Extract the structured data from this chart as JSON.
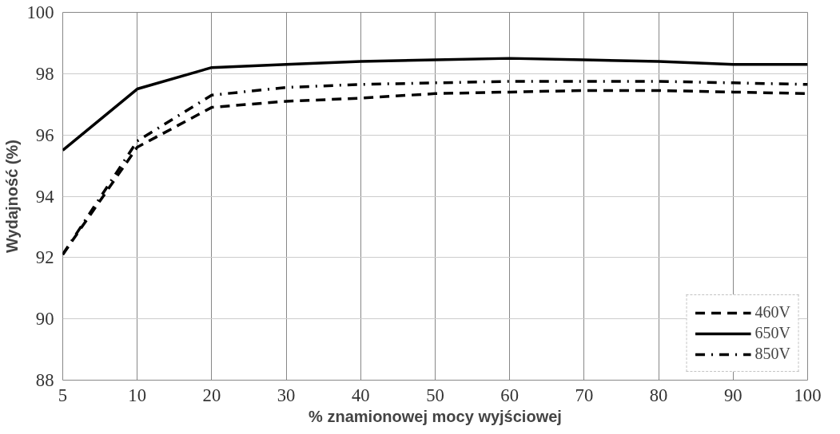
{
  "chart_data": {
    "type": "line",
    "xlabel": "% znamionowej mocy wyjściowej",
    "ylabel": "Wydajność (%)",
    "categories": [
      "5",
      "10",
      "20",
      "30",
      "40",
      "50",
      "60",
      "70",
      "80",
      "90",
      "100"
    ],
    "series": [
      {
        "name": "460V",
        "color": "#000000",
        "line_style": "dashed",
        "values": [
          92.1,
          95.6,
          96.9,
          97.1,
          97.2,
          97.35,
          97.4,
          97.45,
          97.45,
          97.4,
          97.35
        ]
      },
      {
        "name": "650V",
        "color": "#000000",
        "line_style": "solid",
        "values": [
          95.5,
          97.5,
          98.2,
          98.3,
          98.4,
          98.45,
          98.5,
          98.45,
          98.4,
          98.3,
          98.3
        ]
      },
      {
        "name": "850V",
        "color": "#000000",
        "line_style": "dashdot",
        "values": [
          92.1,
          95.8,
          97.3,
          97.55,
          97.65,
          97.7,
          97.75,
          97.75,
          97.75,
          97.7,
          97.65
        ]
      }
    ],
    "ylim": [
      88,
      100
    ],
    "yticks": [
      88,
      90,
      92,
      94,
      96,
      98,
      100
    ],
    "grid": true,
    "legend": "bottom right"
  }
}
